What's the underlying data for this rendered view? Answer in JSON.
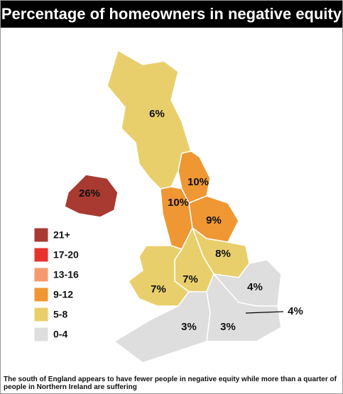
{
  "header": {
    "title": "Percentage of homeowners in negative equity"
  },
  "legend": [
    {
      "label": "21+",
      "color": "#a83a32"
    },
    {
      "label": "17-20",
      "color": "#e8322c"
    },
    {
      "label": "13-16",
      "color": "#f59a6e"
    },
    {
      "label": "9-12",
      "color": "#ef9733"
    },
    {
      "label": "5-8",
      "color": "#e9cf6c"
    },
    {
      "label": "0-4",
      "color": "#dedede"
    }
  ],
  "regions": [
    {
      "label": "6%"
    },
    {
      "label": "26%"
    },
    {
      "label": "10%"
    },
    {
      "label": "10%"
    },
    {
      "label": "9%"
    },
    {
      "label": "8%"
    },
    {
      "label": "7%"
    },
    {
      "label": "7%"
    },
    {
      "label": "4%"
    },
    {
      "label": "4%"
    },
    {
      "label": "3%"
    },
    {
      "label": "3%"
    }
  ],
  "caption": "The south of England appears to have fewer people in negative equity while more than a quarter of people in Northern Ireland are suffering"
}
